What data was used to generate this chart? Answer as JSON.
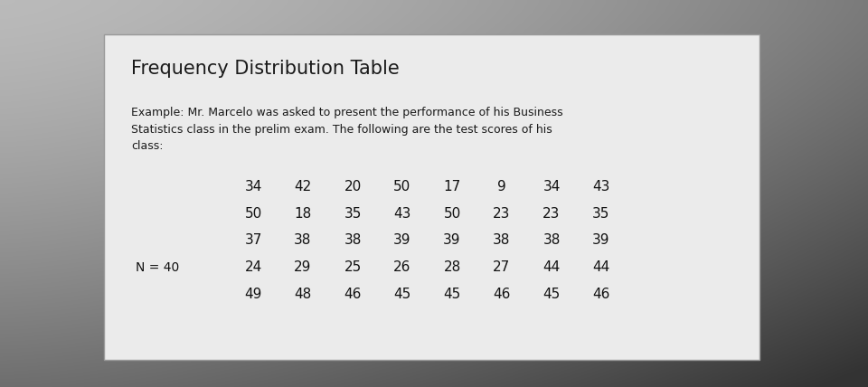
{
  "title": "Frequency Distribution Table",
  "example_text": "Example: Mr. Marcelo was asked to present the performance of his Business\nStatistics class in the prelim exam. The following are the test scores of his\nclass:",
  "rows": [
    [
      34,
      42,
      20,
      50,
      17,
      9,
      34,
      43
    ],
    [
      50,
      18,
      35,
      43,
      50,
      23,
      23,
      35
    ],
    [
      37,
      38,
      38,
      39,
      39,
      38,
      38,
      39
    ],
    [
      24,
      29,
      25,
      26,
      28,
      27,
      44,
      44
    ],
    [
      49,
      48,
      46,
      45,
      45,
      46,
      45,
      46
    ]
  ],
  "n_label": "N = 40",
  "n_label_row": 3,
  "outer_bg_left": "#b0b0b0",
  "outer_bg_right": "#707070",
  "outer_bg_top": "#c8c8c8",
  "outer_bg_bottom": "#303030",
  "card_color": "#ebebeb",
  "card_border_color": "#999999",
  "title_fontsize": 15,
  "example_fontsize": 9,
  "data_fontsize": 11,
  "n_fontsize": 10,
  "title_color": "#1a1a1a",
  "text_color": "#1a1a1a",
  "data_color": "#111111"
}
